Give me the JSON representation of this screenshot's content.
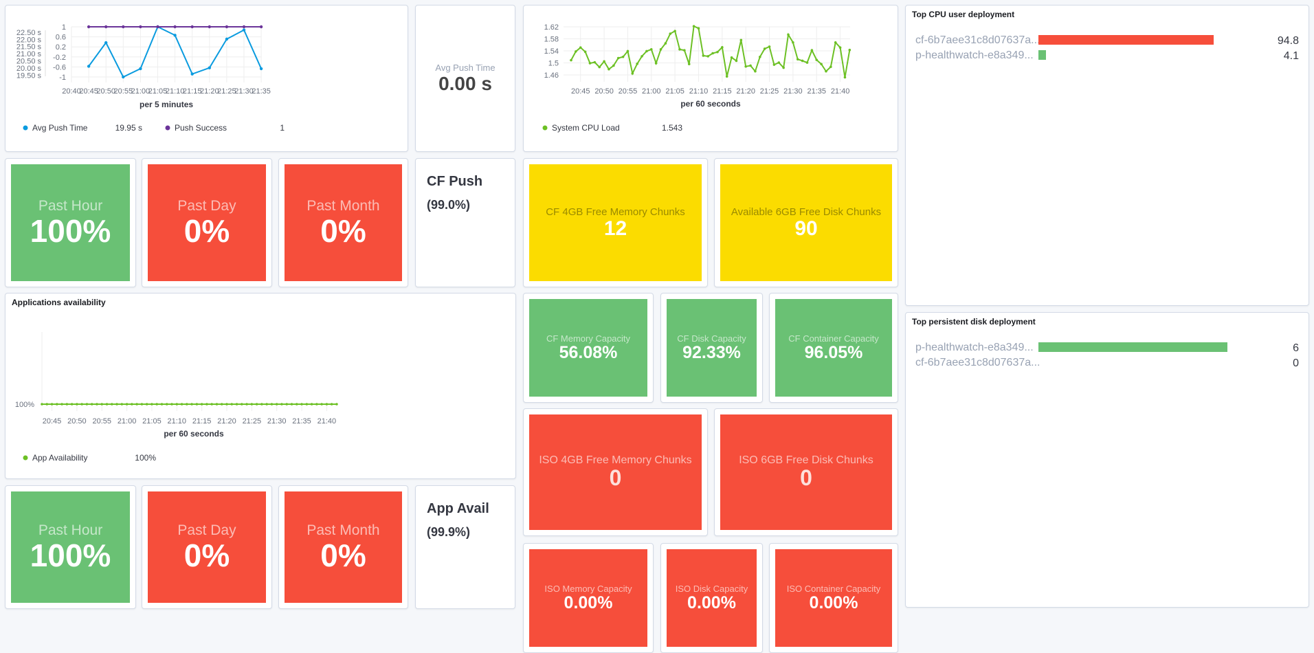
{
  "colors": {
    "green": "#6ac174",
    "red": "#f64e3b",
    "yellow": "#fbdc00",
    "blue": "#0a9bdf",
    "purple": "#6b3499",
    "lime": "#6cc024"
  },
  "push_chart": {
    "chart_data": {
      "type": "line",
      "xlabel": "per 5 minutes",
      "x": [
        "20:45",
        "20:50",
        "20:55",
        "21:00",
        "21:05",
        "21:10",
        "21:15",
        "21:20",
        "21:25",
        "21:30",
        "21:35"
      ],
      "x_ticks": [
        "20:40",
        "20:45",
        "20:50",
        "20:55",
        "21:00",
        "21:05",
        "21:10",
        "21:15",
        "21:20",
        "21:25",
        "21:30",
        "21:35"
      ],
      "y_left_ticks": [
        "22.50 s",
        "22.00 s",
        "21.50 s",
        "21.00 s",
        "20.50 s",
        "20.00 s",
        "19.50 s"
      ],
      "y_left_lim": [
        19.37,
        22.88
      ],
      "y_right_ticks": [
        "1",
        "0.6",
        "0.2",
        "-0.2",
        "-0.6",
        "-1"
      ],
      "y_right_lim": [
        -1,
        1
      ],
      "series": [
        {
          "name": "Avg Push Time",
          "axis": "left",
          "color": "#0a9bdf",
          "values": [
            20.12,
            21.77,
            19.37,
            19.95,
            22.88,
            22.29,
            19.58,
            20.01,
            22.02,
            22.66,
            19.95
          ]
        },
        {
          "name": "Push Success",
          "axis": "right",
          "color": "#6b3499",
          "values": [
            1,
            1,
            1,
            1,
            1,
            1,
            1,
            1,
            1,
            1,
            1
          ]
        }
      ],
      "legend": [
        {
          "name": "Avg Push Time",
          "value": "19.95 s"
        },
        {
          "name": "Push Success",
          "value": "1"
        }
      ]
    }
  },
  "avg_push": {
    "label": "Avg Push Time",
    "value": "0.00 s"
  },
  "cpu_chart": {
    "chart_data": {
      "type": "line",
      "xlabel": "per 60 seconds",
      "x_start": "20:43",
      "x_step_minutes": 1,
      "x_ticks": [
        "20:45",
        "20:50",
        "20:55",
        "21:00",
        "21:05",
        "21:10",
        "21:15",
        "21:20",
        "21:25",
        "21:30",
        "21:35",
        "21:40"
      ],
      "y_ticks": [
        "1.62",
        "1.58",
        "1.54",
        "1.5",
        "1.46"
      ],
      "ylim": [
        1.46,
        1.62
      ],
      "series": [
        {
          "name": "System CPU Load",
          "color": "#6cc024",
          "values": [
            1.509,
            1.538,
            1.551,
            1.537,
            1.499,
            1.502,
            1.486,
            1.505,
            1.479,
            1.491,
            1.516,
            1.52,
            1.539,
            1.465,
            1.497,
            1.522,
            1.539,
            1.545,
            1.499,
            1.545,
            1.565,
            1.597,
            1.606,
            1.545,
            1.542,
            1.496,
            1.622,
            1.615,
            1.524,
            1.522,
            1.532,
            1.536,
            1.552,
            1.455,
            1.518,
            1.507,
            1.576,
            1.488,
            1.491,
            1.472,
            1.52,
            1.547,
            1.554,
            1.494,
            1.501,
            1.484,
            1.594,
            1.568,
            1.512,
            1.507,
            1.501,
            1.542,
            1.51,
            1.496,
            1.472,
            1.487,
            1.568,
            1.551,
            1.452,
            1.543
          ]
        }
      ],
      "legend": [
        {
          "name": "System CPU Load",
          "value": "1.543"
        }
      ]
    }
  },
  "top_cpu": {
    "title": "Top CPU user deployment",
    "items": [
      {
        "name": "cf-6b7aee31c8d07637a...",
        "value": "94.8",
        "fraction": 1.0,
        "color": "#f64e3b"
      },
      {
        "name": "p-healthwatch-e8a349...",
        "value": "4.1",
        "fraction": 0.043,
        "color": "#6ac174"
      }
    ]
  },
  "top_disk": {
    "title": "Top persistent disk deployment",
    "items": [
      {
        "name": "p-healthwatch-e8a349...",
        "value": "6",
        "fraction": 1.0,
        "color": "#6ac174"
      },
      {
        "name": "cf-6b7aee31c8d07637a...",
        "value": "0",
        "fraction": 0,
        "color": "#6ac174"
      }
    ]
  },
  "cf_push_tiles": [
    {
      "label": "Past Hour",
      "value": "100%",
      "status": "green"
    },
    {
      "label": "Past Day",
      "value": "0%",
      "status": "red"
    },
    {
      "label": "Past Month",
      "value": "0%",
      "status": "red"
    }
  ],
  "cf_push": {
    "title": "CF Push",
    "subtitle": "(99.0%)"
  },
  "chunks": [
    {
      "label": "CF 4GB Free Memory Chunks",
      "value": "12",
      "status": "yellow"
    },
    {
      "label": "Available 6GB Free Disk Chunks",
      "value": "90",
      "status": "yellow"
    }
  ],
  "app_chart": {
    "title": "Applications availability",
    "chart_data": {
      "type": "line",
      "xlabel": "per 60 seconds",
      "x_start": "20:43",
      "x_step_minutes": 1,
      "count": 60,
      "x_ticks": [
        "20:45",
        "20:50",
        "20:55",
        "21:00",
        "21:05",
        "21:10",
        "21:15",
        "21:20",
        "21:25",
        "21:30",
        "21:35",
        "21:40"
      ],
      "y_ticks": [
        "100%"
      ],
      "series": [
        {
          "name": "App Availability",
          "color": "#6cc024",
          "value": 100
        }
      ],
      "legend": [
        {
          "name": "App Availability",
          "value": "100%"
        }
      ]
    }
  },
  "cf_capacity": [
    {
      "label": "CF Memory Capacity",
      "value": "56.08%",
      "status": "green"
    },
    {
      "label": "CF Disk Capacity",
      "value": "92.33%",
      "status": "green"
    },
    {
      "label": "CF Container Capacity",
      "value": "96.05%",
      "status": "green"
    }
  ],
  "iso_chunks": [
    {
      "label": "ISO 4GB Free Memory Chunks",
      "value": "0",
      "status": "red"
    },
    {
      "label": "ISO 6GB Free Disk Chunks",
      "value": "0",
      "status": "red"
    }
  ],
  "iso_capacity": [
    {
      "label": "ISO Memory Capacity",
      "value": "0.00%",
      "status": "red"
    },
    {
      "label": "ISO Disk Capacity",
      "value": "0.00%",
      "status": "red"
    },
    {
      "label": "ISO Container Capacity",
      "value": "0.00%",
      "status": "red"
    }
  ],
  "app_tiles": [
    {
      "label": "Past Hour",
      "value": "100%",
      "status": "green"
    },
    {
      "label": "Past Day",
      "value": "0%",
      "status": "red"
    },
    {
      "label": "Past Month",
      "value": "0%",
      "status": "red"
    }
  ],
  "app_avail": {
    "title": "App Avail",
    "subtitle": "(99.9%)"
  }
}
